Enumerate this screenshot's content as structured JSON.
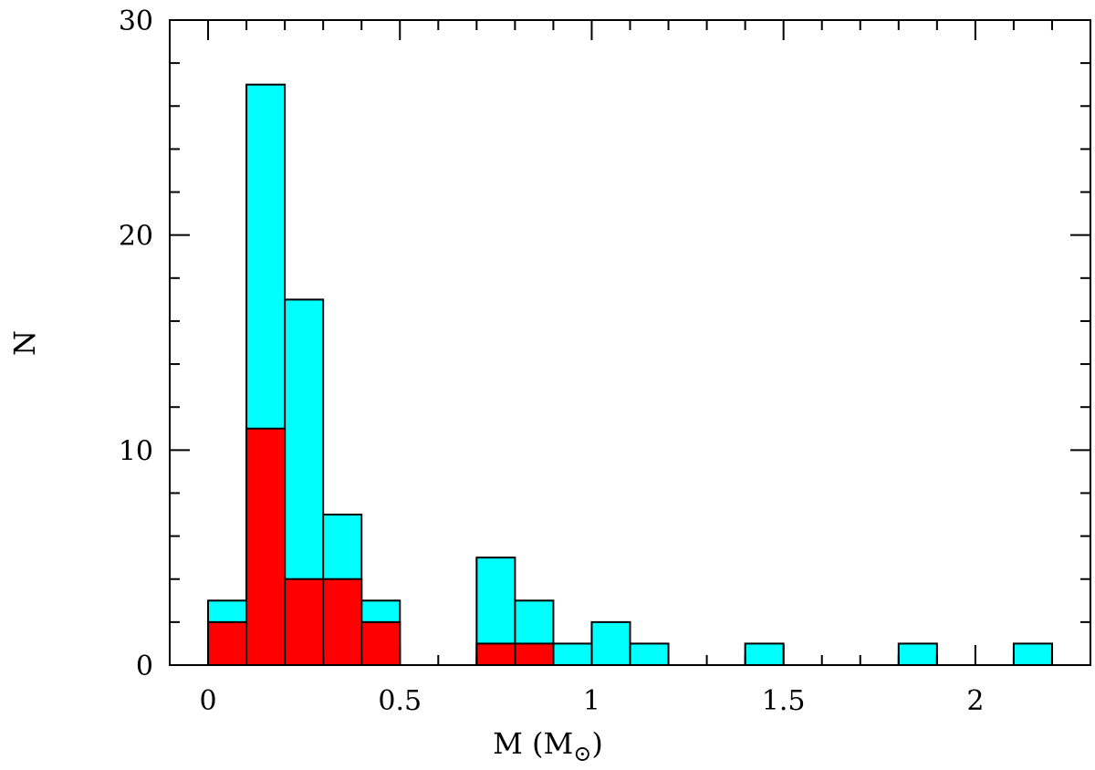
{
  "chart_data": {
    "type": "bar",
    "subtype": "stacked-step-histogram",
    "xlabel": "M  (M",
    "xlabel_sub": "⊙",
    "xlabel_end": ")",
    "ylabel": "N",
    "xlim": [
      -0.1,
      2.3
    ],
    "ylim": [
      0,
      30
    ],
    "x_ticks_major": [
      0,
      0.5,
      1,
      1.5,
      2
    ],
    "x_tick_labels": [
      "0",
      "0.5",
      "1",
      "1.5",
      "2"
    ],
    "y_ticks_major": [
      0,
      10,
      20,
      30
    ],
    "y_tick_labels": [
      "0",
      "10",
      "20",
      "30"
    ],
    "grid": false,
    "bin_edges": [
      0,
      0.1,
      0.2,
      0.3,
      0.4,
      0.5,
      0.6,
      0.7,
      0.8,
      0.9,
      1.0,
      1.1,
      1.2,
      1.3,
      1.4,
      1.5,
      1.6,
      1.7,
      1.8,
      1.9,
      2.0,
      2.1,
      2.2
    ],
    "series": [
      {
        "color": "#00ffff",
        "values": [
          3,
          27,
          17,
          7,
          3,
          0,
          0,
          5,
          3,
          1,
          2,
          1,
          0,
          0,
          1,
          0,
          0,
          0,
          1,
          0,
          0,
          1
        ]
      },
      {
        "color": "#ff0000",
        "values": [
          2,
          11,
          4,
          4,
          2,
          0,
          0,
          1,
          1,
          0,
          0,
          0,
          0,
          0,
          0,
          0,
          0,
          0,
          0,
          0,
          0,
          0
        ]
      }
    ]
  }
}
